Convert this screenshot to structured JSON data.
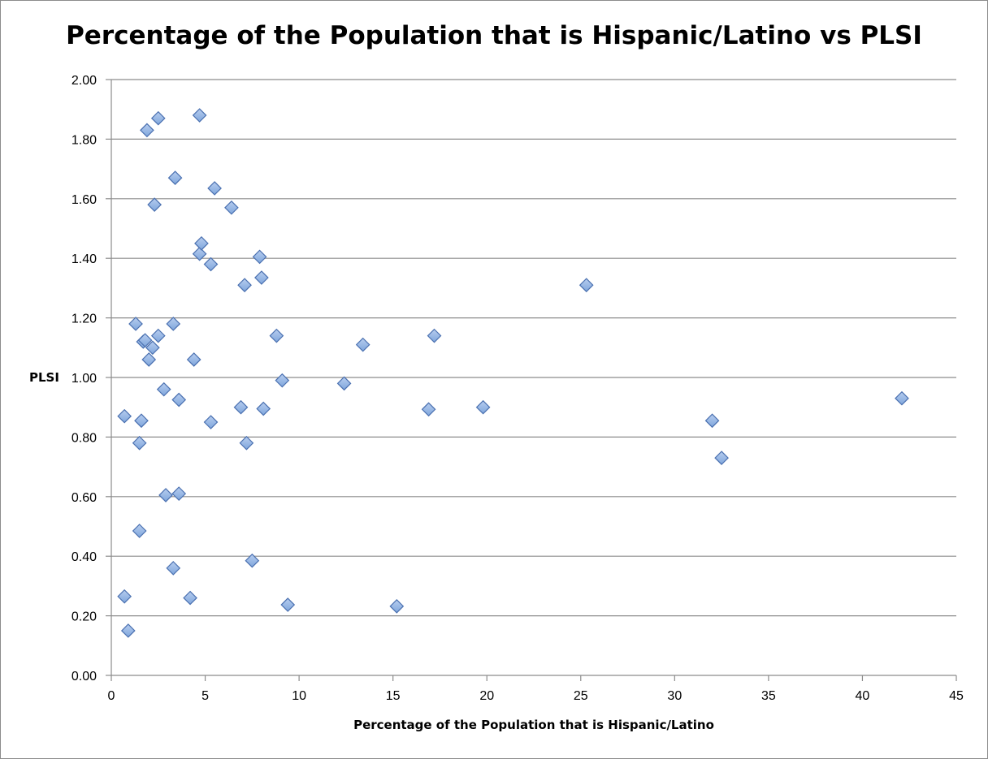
{
  "chart_data": {
    "type": "scatter",
    "title": "Percentage of the Population that is Hispanic/Latino vs PLSI",
    "xlabel": "Percentage of the Population that is Hispanic/Latino",
    "ylabel": "PLSI",
    "xlim": [
      0,
      45
    ],
    "ylim": [
      0,
      2
    ],
    "x_ticks": [
      "0",
      "5",
      "10",
      "15",
      "20",
      "25",
      "30",
      "35",
      "40",
      "45"
    ],
    "y_ticks": [
      "0.00",
      "0.20",
      "0.40",
      "0.60",
      "0.80",
      "1.00",
      "1.20",
      "1.40",
      "1.60",
      "1.80",
      "2.00"
    ],
    "grid": "horizontal",
    "legend": "none",
    "marker": "diamond",
    "marker_color": "#7fa6dc",
    "points": [
      {
        "x": 0.7,
        "y": 0.87
      },
      {
        "x": 0.7,
        "y": 0.265
      },
      {
        "x": 0.9,
        "y": 0.15
      },
      {
        "x": 1.3,
        "y": 1.18
      },
      {
        "x": 1.5,
        "y": 0.78
      },
      {
        "x": 1.5,
        "y": 0.485
      },
      {
        "x": 1.6,
        "y": 0.855
      },
      {
        "x": 1.7,
        "y": 1.12
      },
      {
        "x": 1.8,
        "y": 1.125
      },
      {
        "x": 1.9,
        "y": 1.83
      },
      {
        "x": 2.0,
        "y": 1.06
      },
      {
        "x": 2.2,
        "y": 1.1
      },
      {
        "x": 2.3,
        "y": 1.58
      },
      {
        "x": 2.5,
        "y": 1.87
      },
      {
        "x": 2.5,
        "y": 1.14
      },
      {
        "x": 2.8,
        "y": 0.96
      },
      {
        "x": 2.9,
        "y": 0.605
      },
      {
        "x": 3.3,
        "y": 1.18
      },
      {
        "x": 3.3,
        "y": 0.36
      },
      {
        "x": 3.4,
        "y": 1.67
      },
      {
        "x": 3.6,
        "y": 0.61
      },
      {
        "x": 3.6,
        "y": 0.925
      },
      {
        "x": 4.2,
        "y": 0.26
      },
      {
        "x": 4.4,
        "y": 1.06
      },
      {
        "x": 4.7,
        "y": 1.88
      },
      {
        "x": 4.7,
        "y": 1.415
      },
      {
        "x": 4.8,
        "y": 1.45
      },
      {
        "x": 5.3,
        "y": 0.85
      },
      {
        "x": 5.3,
        "y": 1.38
      },
      {
        "x": 5.5,
        "y": 1.635
      },
      {
        "x": 6.4,
        "y": 1.57
      },
      {
        "x": 6.9,
        "y": 0.9
      },
      {
        "x": 7.1,
        "y": 1.31
      },
      {
        "x": 7.2,
        "y": 0.78
      },
      {
        "x": 7.5,
        "y": 0.385
      },
      {
        "x": 7.9,
        "y": 1.405
      },
      {
        "x": 8.0,
        "y": 1.335
      },
      {
        "x": 8.1,
        "y": 0.895
      },
      {
        "x": 8.8,
        "y": 1.14
      },
      {
        "x": 9.1,
        "y": 0.99
      },
      {
        "x": 9.4,
        "y": 0.237
      },
      {
        "x": 12.4,
        "y": 0.98
      },
      {
        "x": 13.4,
        "y": 1.11
      },
      {
        "x": 15.2,
        "y": 0.232
      },
      {
        "x": 16.9,
        "y": 0.893
      },
      {
        "x": 17.2,
        "y": 1.14
      },
      {
        "x": 19.8,
        "y": 0.9
      },
      {
        "x": 25.3,
        "y": 1.31
      },
      {
        "x": 32.0,
        "y": 0.855
      },
      {
        "x": 32.5,
        "y": 0.73
      },
      {
        "x": 42.1,
        "y": 0.93
      }
    ]
  }
}
